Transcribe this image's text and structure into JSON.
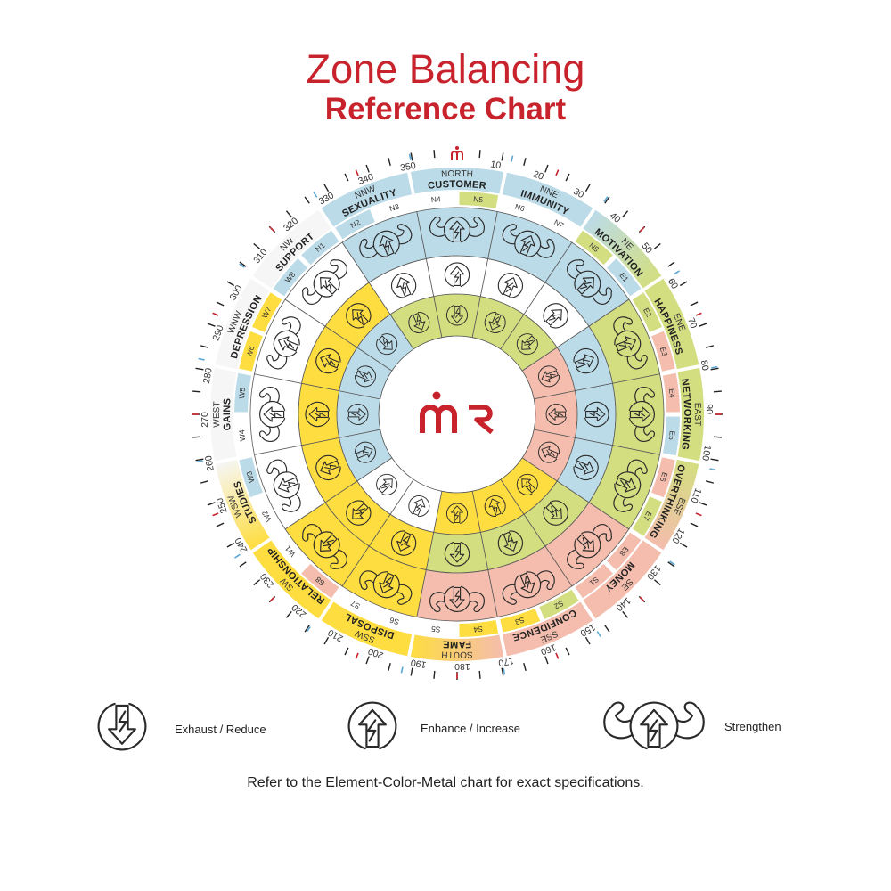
{
  "title": "Zone Balancing",
  "subtitle": "Reference Chart",
  "logo_text": "mR",
  "palette": {
    "blue": "#bcdbe8",
    "green": "#d3de80",
    "pink": "#f4bdad",
    "yellow": "#fedd40",
    "white": "#ffffff",
    "band_white": "#f6f6f6",
    "brand_red": "#c8232c",
    "tick_red": "#c8232c",
    "tick_blue": "#5aa7d6"
  },
  "zones": [
    {
      "dir": "NORTH",
      "name": "CUSTOMER",
      "band": [
        "blue"
      ],
      "inner": "green",
      "middle": "white",
      "outer": "blue"
    },
    {
      "dir": "NNE",
      "name": "IMMUNITY",
      "band": [
        "blue"
      ],
      "inner": "green",
      "middle": "white",
      "outer": "blue"
    },
    {
      "dir": "NE",
      "name": "MOTIVATION",
      "band": [
        "blue",
        "green"
      ],
      "inner": "green",
      "middle": "white",
      "outer": "blue"
    },
    {
      "dir": "ENE",
      "name": "HAPPINESS",
      "band": [
        "green"
      ],
      "inner": "pink",
      "middle": "blue",
      "outer": "green"
    },
    {
      "dir": "EAST",
      "name": "NETWORKING",
      "band": [
        "green"
      ],
      "inner": "pink",
      "middle": "blue",
      "outer": "green"
    },
    {
      "dir": "ESE",
      "name": "OVERTHINKING",
      "band": [
        "green",
        "pink"
      ],
      "inner": "pink",
      "middle": "blue",
      "outer": "green"
    },
    {
      "dir": "SE",
      "name": "MONEY",
      "band": [
        "pink"
      ],
      "inner": "yellow",
      "middle": "green",
      "outer": "pink"
    },
    {
      "dir": "SSE",
      "name": "CONFIDENCE",
      "band": [
        "pink"
      ],
      "inner": "yellow",
      "middle": "green",
      "outer": "pink"
    },
    {
      "dir": "SOUTH",
      "name": "FAME",
      "band": [
        "pink",
        "yellow"
      ],
      "inner": "yellow",
      "middle": "green",
      "outer": "pink"
    },
    {
      "dir": "SSW",
      "name": "DISPOSAL",
      "band": [
        "yellow"
      ],
      "inner": "white",
      "middle": "yellow",
      "outer": "yellow"
    },
    {
      "dir": "SW",
      "name": "RELATIONSHIP",
      "band": [
        "yellow"
      ],
      "inner": "white",
      "middle": "yellow",
      "outer": "yellow"
    },
    {
      "dir": "WSW",
      "name": "STUDIES",
      "band": [
        "yellow",
        "band_white"
      ],
      "inner": "blue",
      "middle": "yellow",
      "outer": "white"
    },
    {
      "dir": "WEST",
      "name": "GAINS",
      "band": [
        "band_white"
      ],
      "inner": "blue",
      "middle": "yellow",
      "outer": "white"
    },
    {
      "dir": "WNW",
      "name": "DEPRESSION",
      "band": [
        "band_white"
      ],
      "inner": "blue",
      "middle": "yellow",
      "outer": "white"
    },
    {
      "dir": "NW",
      "name": "SUPPORT",
      "band": [
        "band_white"
      ],
      "inner": "blue",
      "middle": "yellow",
      "outer": "white"
    },
    {
      "dir": "NNW",
      "name": "SEXUALITY",
      "band": [
        "blue"
      ],
      "inner": "green",
      "middle": "white",
      "outer": "blue"
    }
  ],
  "ring_icons": {
    "inner": "exhaust",
    "middle": "enhance",
    "outer": "strengthen"
  },
  "pads": [
    {
      "label": "N1",
      "color": "blue"
    },
    {
      "label": "N2",
      "color": "blue"
    },
    {
      "label": "N3",
      "color": "white"
    },
    {
      "label": "N4",
      "color": "white"
    },
    {
      "label": "N5",
      "color": "green"
    },
    {
      "label": "N6",
      "color": "white"
    },
    {
      "label": "N7",
      "color": "white"
    },
    {
      "label": "N8",
      "color": "green"
    },
    {
      "label": "E1",
      "color": "blue"
    },
    {
      "label": "E2",
      "color": "green"
    },
    {
      "label": "E3",
      "color": "pink"
    },
    {
      "label": "E4",
      "color": "pink"
    },
    {
      "label": "E5",
      "color": "blue"
    },
    {
      "label": "E6",
      "color": "pink"
    },
    {
      "label": "E7",
      "color": "green"
    },
    {
      "label": "E8",
      "color": "pink"
    },
    {
      "label": "S1",
      "color": "pink"
    },
    {
      "label": "S2",
      "color": "green"
    },
    {
      "label": "S3",
      "color": "yellow"
    },
    {
      "label": "S4",
      "color": "yellow"
    },
    {
      "label": "S5",
      "color": "white"
    },
    {
      "label": "S6",
      "color": "white"
    },
    {
      "label": "S7",
      "color": "white"
    },
    {
      "label": "S8",
      "color": "pink"
    },
    {
      "label": "W1",
      "color": "white"
    },
    {
      "label": "W2",
      "color": "white"
    },
    {
      "label": "W3",
      "color": "blue"
    },
    {
      "label": "W4",
      "color": "white"
    },
    {
      "label": "W5",
      "color": "blue"
    },
    {
      "label": "W6",
      "color": "yellow"
    },
    {
      "label": "W7",
      "color": "yellow"
    },
    {
      "label": "W8",
      "color": "blue"
    }
  ],
  "degree_labels": [
    "10",
    "20",
    "30",
    "40",
    "50",
    "60",
    "70",
    "80",
    "90",
    "100",
    "110",
    "120",
    "130",
    "140",
    "150",
    "160",
    "170",
    "180",
    "190",
    "200",
    "210",
    "220",
    "230",
    "240",
    "250",
    "260",
    "270",
    "280",
    "290",
    "300",
    "310",
    "320",
    "330",
    "340",
    "350"
  ],
  "legend": [
    {
      "icon": "exhaust",
      "label": "Exhaust / Reduce"
    },
    {
      "icon": "enhance",
      "label": "Enhance / Increase"
    },
    {
      "icon": "strengthen",
      "label": "Strengthen"
    }
  ],
  "footer": "Refer to the Element-Color-Metal chart for exact specifications."
}
